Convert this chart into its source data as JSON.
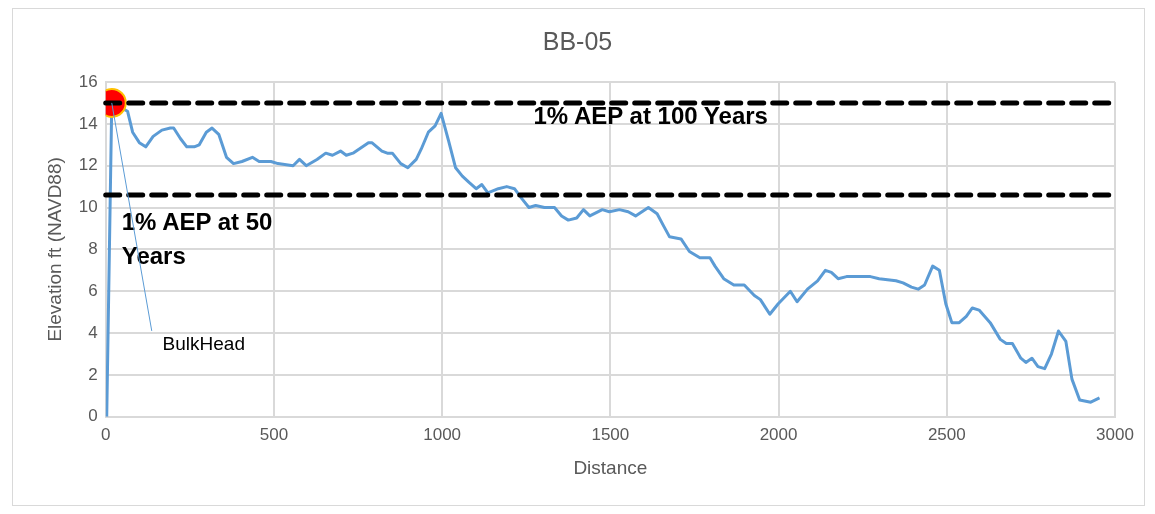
{
  "chart_data": {
    "type": "line",
    "title": "BB-05",
    "xlabel": "Distance",
    "ylabel": "Elevation ft (NAVD88)",
    "xlim": [
      0,
      3000
    ],
    "xticks": [
      0,
      500,
      1000,
      1500,
      2000,
      2500,
      3000
    ],
    "ylim": [
      0,
      16
    ],
    "yticks": [
      0,
      2,
      4,
      6,
      8,
      10,
      12,
      14,
      16
    ],
    "grid": true,
    "series": [
      {
        "type": "line",
        "color": "#5b9bd5",
        "marker": "none",
        "x": [
          3,
          18,
          65,
          80,
          100,
          119,
          141,
          167,
          192,
          202,
          222,
          241,
          263,
          278,
          299,
          316,
          336,
          359,
          380,
          405,
          436,
          456,
          491,
          512,
          557,
          576,
          596,
          628,
          654,
          674,
          698,
          715,
          735,
          781,
          791,
          821,
          837,
          852,
          877,
          898,
          923,
          938,
          959,
          979,
          997,
          1019,
          1040,
          1060,
          1080,
          1101,
          1118,
          1136,
          1167,
          1192,
          1215,
          1238,
          1258,
          1278,
          1304,
          1334,
          1355,
          1375,
          1400,
          1420,
          1439,
          1476,
          1497,
          1527,
          1553,
          1575,
          1613,
          1639,
          1659,
          1676,
          1710,
          1735,
          1766,
          1796,
          1811,
          1837,
          1867,
          1898,
          1928,
          1946,
          1974,
          1999,
          2035,
          2055,
          2086,
          2116,
          2139,
          2157,
          2177,
          2202,
          2273,
          2299,
          2349,
          2370,
          2395,
          2415,
          2434,
          2458,
          2478,
          2497,
          2515,
          2537,
          2558,
          2576,
          2596,
          2629,
          2659,
          2677,
          2695,
          2720,
          2735,
          2753,
          2771,
          2791,
          2811,
          2832,
          2854,
          2872,
          2895,
          2928,
          2954
        ],
        "values": [
          0,
          15,
          14.6,
          13.6,
          13.1,
          12.9,
          13.4,
          13.7,
          13.8,
          13.8,
          13.3,
          12.9,
          12.9,
          13,
          13.6,
          13.8,
          13.5,
          12.4,
          12.1,
          12.2,
          12.4,
          12.2,
          12.2,
          12.1,
          12,
          12.3,
          12,
          12.3,
          12.6,
          12.5,
          12.7,
          12.5,
          12.6,
          13.1,
          13.1,
          12.7,
          12.6,
          12.6,
          12.1,
          11.9,
          12.3,
          12.8,
          13.6,
          13.9,
          14.5,
          13.2,
          11.9,
          11.5,
          11.2,
          10.9,
          11.1,
          10.7,
          10.9,
          11,
          10.9,
          10.4,
          10,
          10.1,
          10,
          10,
          9.6,
          9.4,
          9.5,
          9.9,
          9.6,
          9.9,
          9.8,
          9.9,
          9.8,
          9.6,
          10,
          9.7,
          9.1,
          8.6,
          8.5,
          7.9,
          7.6,
          7.6,
          7.2,
          6.6,
          6.3,
          6.3,
          5.8,
          5.6,
          4.9,
          5.4,
          6,
          5.5,
          6.1,
          6.5,
          7,
          6.9,
          6.6,
          6.7,
          6.7,
          6.6,
          6.5,
          6.4,
          6.2,
          6.1,
          6.3,
          7.2,
          7,
          5.4,
          4.5,
          4.5,
          4.8,
          5.2,
          5.1,
          4.5,
          3.7,
          3.5,
          3.5,
          2.8,
          2.6,
          2.8,
          2.4,
          2.3,
          3,
          4.1,
          3.6,
          1.8,
          0.8,
          0.7,
          0.9
        ]
      },
      {
        "type": "scatter",
        "color": "#ff0000",
        "marker": "circle",
        "x": [
          18
        ],
        "values": [
          15
        ]
      }
    ],
    "ref_lines": [
      {
        "axis": "y",
        "value": 15,
        "label": "1% AEP at 100 Years",
        "color": "#000000",
        "line_style": "dashed"
      },
      {
        "axis": "y",
        "value": 10.6,
        "label": "1% AEP at 50 Years",
        "color": "#000000",
        "line_style": "dashed"
      }
    ],
    "annotations": [
      {
        "text": "BulkHead",
        "x": 18,
        "y": 15
      }
    ]
  }
}
